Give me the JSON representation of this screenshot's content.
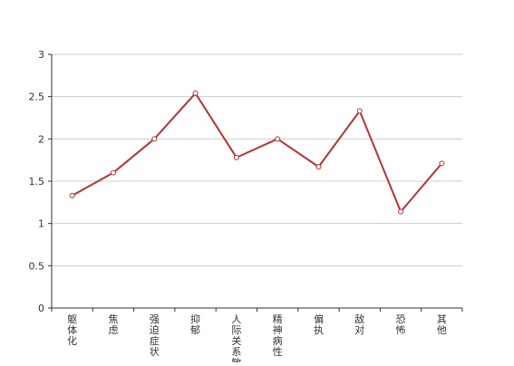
{
  "chart_data": {
    "type": "line",
    "categories": [
      "躯体化",
      "焦虑",
      "强迫症状",
      "抑郁",
      "人际关系敏感",
      "精神病性",
      "偏执",
      "敌对",
      "恐怖",
      "其他"
    ],
    "series": [
      {
        "values": [
          1.33,
          1.6,
          2.0,
          2.54,
          1.78,
          2.0,
          1.67,
          2.33,
          1.14,
          1.71
        ]
      }
    ],
    "ylim": [
      0,
      3
    ],
    "yticks": [
      "0",
      "0.5",
      "1",
      "1.5",
      "2",
      "2.5",
      "3"
    ],
    "ytick_values": [
      0,
      0.5,
      1,
      1.5,
      2,
      2.5,
      3
    ],
    "grid": true,
    "colors": {
      "line": "#b83232",
      "grid": "#cccccc",
      "axis": "#333333",
      "text": "#333333"
    }
  }
}
